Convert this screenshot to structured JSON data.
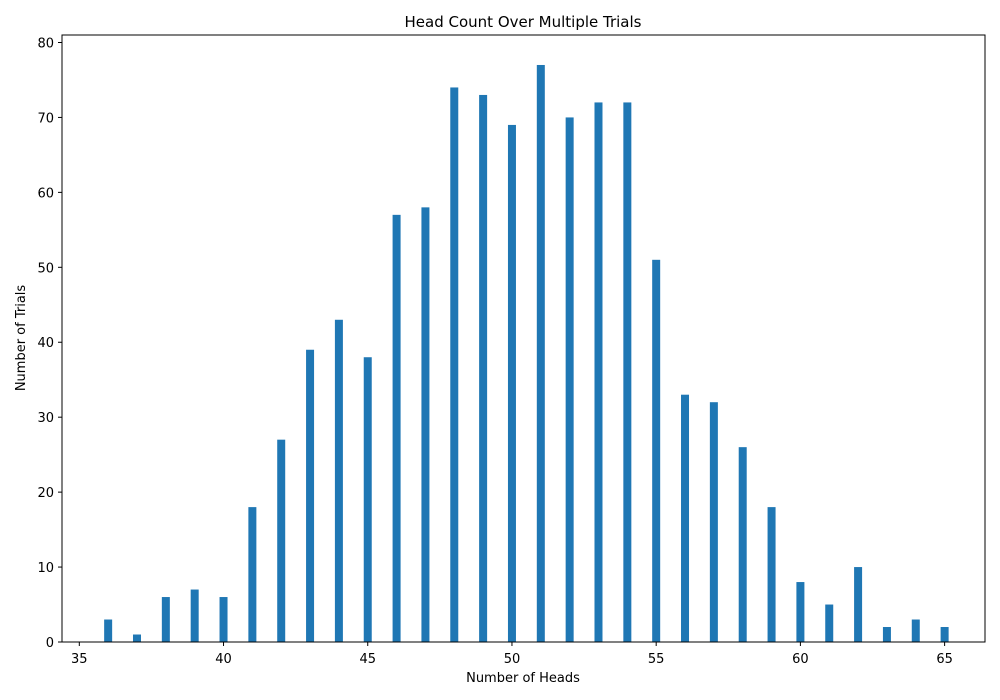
{
  "chart_data": {
    "type": "bar",
    "title": "Head Count Over Multiple Trials",
    "xlabel": "Number of Heads",
    "ylabel": "Number of Trials",
    "xlim": [
      34.4,
      66.4
    ],
    "ylim": [
      0,
      81
    ],
    "xticks": [
      35,
      40,
      45,
      50,
      55,
      60,
      65
    ],
    "yticks": [
      0,
      10,
      20,
      30,
      40,
      50,
      60,
      70,
      80
    ],
    "grid": false,
    "bar_color": "#1f77b4",
    "x": [
      36,
      37,
      38,
      39,
      40,
      41,
      42,
      43,
      44,
      45,
      46,
      47,
      48,
      49,
      50,
      51,
      52,
      53,
      54,
      55,
      56,
      57,
      58,
      59,
      60,
      61,
      62,
      63,
      64,
      65
    ],
    "values": [
      3,
      1,
      6,
      7,
      6,
      18,
      27,
      39,
      43,
      38,
      57,
      58,
      74,
      73,
      69,
      77,
      70,
      72,
      72,
      51,
      33,
      32,
      26,
      18,
      8,
      5,
      10,
      2,
      3,
      2
    ]
  }
}
